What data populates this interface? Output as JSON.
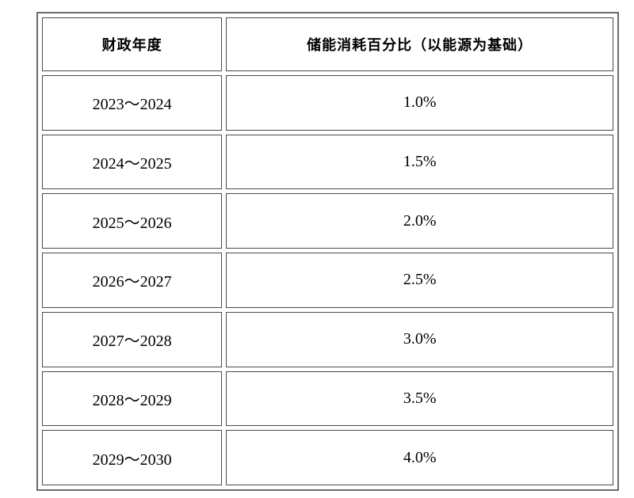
{
  "table": {
    "columns": [
      "财政年度",
      "储能消耗百分比（以能源为基础）"
    ],
    "rows": [
      [
        "2023～2024",
        "1.0%"
      ],
      [
        "2024～2025",
        "1.5%"
      ],
      [
        "2025～2026",
        "2.0%"
      ],
      [
        "2026～2027",
        "2.5%"
      ],
      [
        "2027～2028",
        "3.0%"
      ],
      [
        "2028～2029",
        "3.5%"
      ],
      [
        "2029～2030",
        "4.0%"
      ]
    ]
  },
  "chart_data": {
    "type": "table",
    "title": "",
    "categories": [
      "2023～2024",
      "2024～2025",
      "2025～2026",
      "2026～2027",
      "2027～2028",
      "2028～2029",
      "2029～2030"
    ],
    "values": [
      1.0,
      1.5,
      2.0,
      2.5,
      3.0,
      3.5,
      4.0
    ],
    "xlabel": "财政年度",
    "ylabel": "储能消耗百分比（以能源为基础）"
  },
  "colors": {
    "background": "#ffffff",
    "outer_border": "#6b6b6b",
    "cell_border": "#4a4a4a",
    "text": "#000000"
  }
}
